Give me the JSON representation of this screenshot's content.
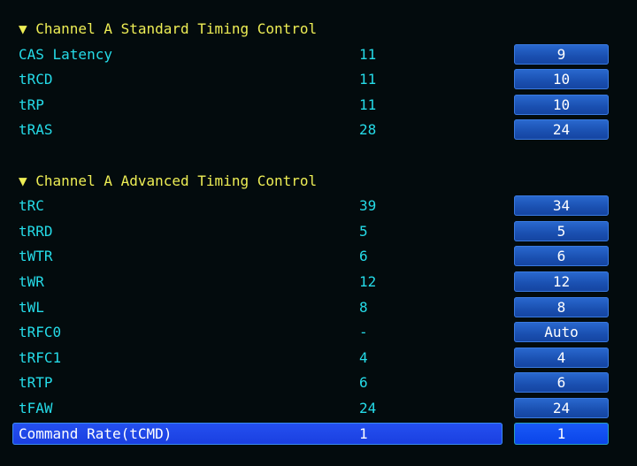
{
  "sections": [
    {
      "title": "▼ Channel A Standard Timing Control",
      "rows": [
        {
          "label": "CAS Latency",
          "current": "11",
          "value": "9"
        },
        {
          "label": "tRCD",
          "current": "11",
          "value": "10"
        },
        {
          "label": "tRP",
          "current": "11",
          "value": "10"
        },
        {
          "label": "tRAS",
          "current": "28",
          "value": "24"
        }
      ]
    },
    {
      "title": "▼ Channel A Advanced Timing Control",
      "rows": [
        {
          "label": "tRC",
          "current": "39",
          "value": "34"
        },
        {
          "label": "tRRD",
          "current": "5",
          "value": "5"
        },
        {
          "label": "tWTR",
          "current": "6",
          "value": "6"
        },
        {
          "label": "tWR",
          "current": "12",
          "value": "12"
        },
        {
          "label": "tWL",
          "current": "8",
          "value": "8"
        },
        {
          "label": "tRFC0",
          "current": "-",
          "value": "Auto"
        },
        {
          "label": "tRFC1",
          "current": "4",
          "value": "4"
        },
        {
          "label": "tRTP",
          "current": "6",
          "value": "6"
        },
        {
          "label": "tFAW",
          "current": "24",
          "value": "24"
        },
        {
          "label": "Command Rate(tCMD)",
          "current": "1",
          "value": "1",
          "selected": true
        }
      ]
    }
  ],
  "colors": {
    "header": "#eeee55",
    "label": "#25dbe8",
    "selection": "#2550f0",
    "background": "#030b0d"
  }
}
